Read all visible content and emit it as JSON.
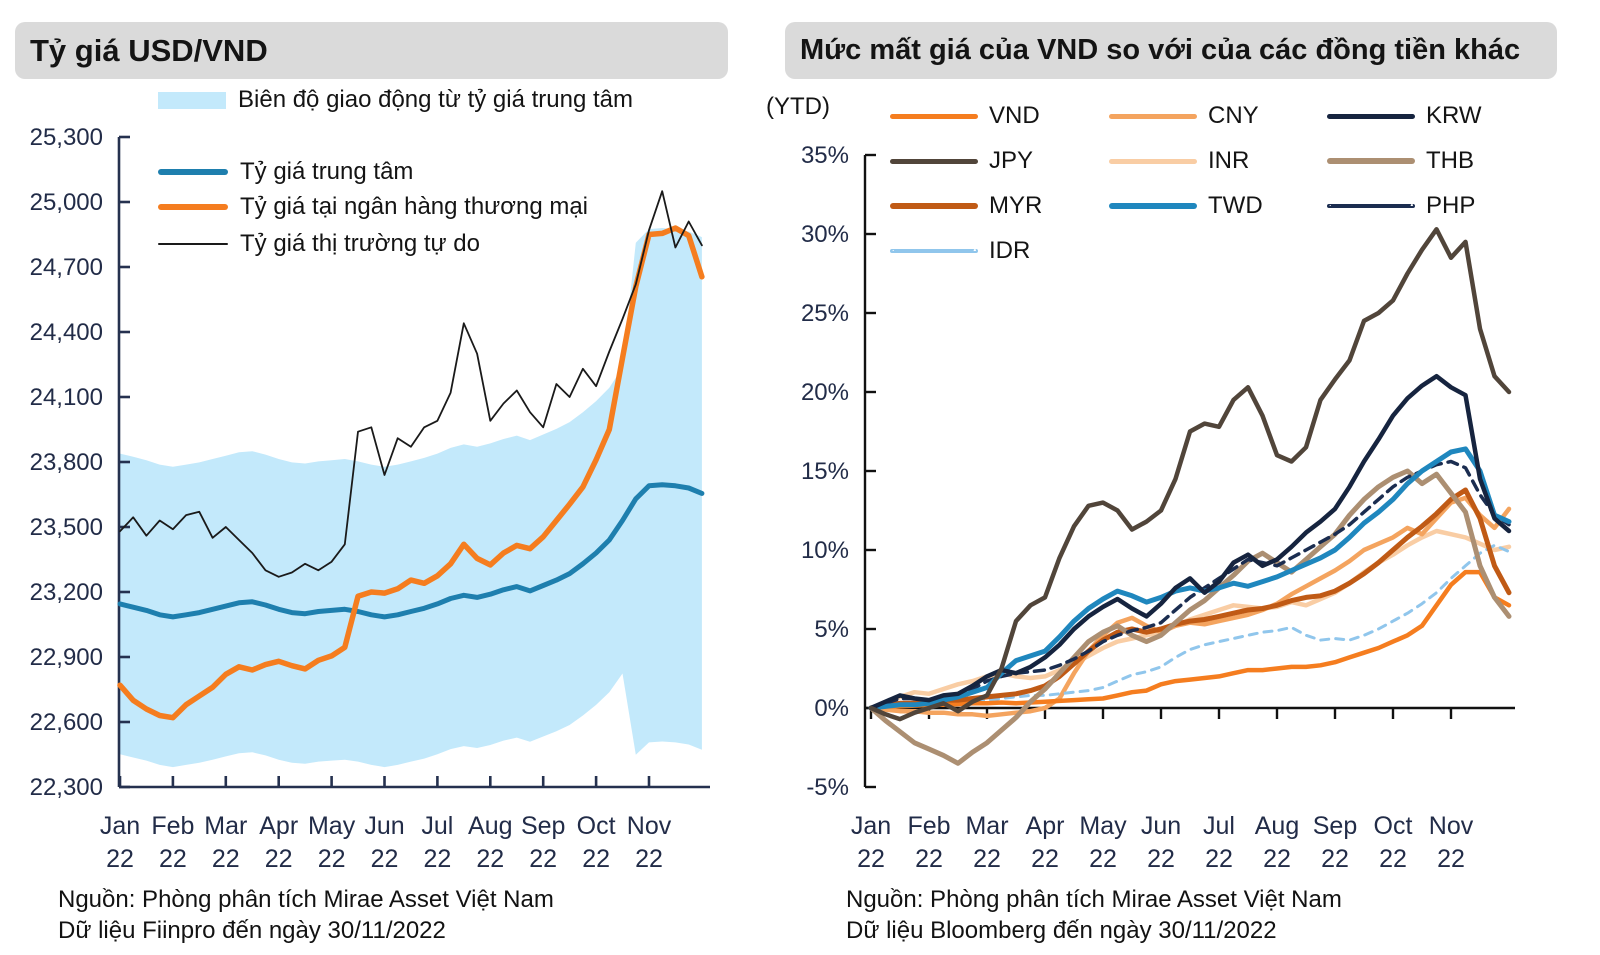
{
  "page": {
    "background": "#FFFFFF"
  },
  "left_panel": {
    "source_line1": "Nguồn: Phòng phân tích Mirae Asset Việt Nam",
    "source_line2": "Dữ liệu Fiinpro đến ngày 30/11/2022"
  },
  "right_panel": {
    "source_line1": "Nguồn: Phòng phân tích Mirae Asset Việt Nam",
    "source_line2": "Dữ liệu Bloomberg đến ngày 30/11/2022"
  },
  "chart_data": [
    {
      "id": "usdvnd",
      "type": "line",
      "title": "Tỷ giá USD/VND",
      "x_unit": "months of 2022",
      "x_start": 0,
      "x_step": 0.25,
      "x_tick_labels": [
        "Jan",
        "Feb",
        "Mar",
        "Apr",
        "May",
        "Jun",
        "Jul",
        "Aug",
        "Sep",
        "Oct",
        "Nov"
      ],
      "x_tick_year": "22",
      "ylim": [
        22300,
        25300
      ],
      "grid": false,
      "legend_position": "top-left-inside",
      "y_ticks": [
        {
          "v": 25300,
          "label": "25,300"
        },
        {
          "v": 25000,
          "label": "25,000"
        },
        {
          "v": 24700,
          "label": "24,700"
        },
        {
          "v": 24400,
          "label": "24,400"
        },
        {
          "v": 24100,
          "label": "24,100"
        },
        {
          "v": 23800,
          "label": "23,800"
        },
        {
          "v": 23500,
          "label": "23,500"
        },
        {
          "v": 23200,
          "label": "23,200"
        },
        {
          "v": 22900,
          "label": "22,900"
        },
        {
          "v": 22600,
          "label": "22,600"
        },
        {
          "v": 22300,
          "label": "22,300"
        }
      ],
      "band": {
        "name": "Biên độ giao động từ tỷ giá trung tâm",
        "color": "#C3E9FB",
        "upper": [
          23839,
          23824,
          23808,
          23788,
          23778,
          23788,
          23798,
          23814,
          23829,
          23845,
          23850,
          23834,
          23814,
          23798,
          23793,
          23803,
          23808,
          23814,
          23803,
          23788,
          23778,
          23788,
          23803,
          23819,
          23839,
          23865,
          23881,
          23870,
          23886,
          23906,
          23922,
          23901,
          23927,
          23953,
          23984,
          24030,
          24081,
          24143,
          24236,
          24812,
          24875,
          24880,
          24875,
          24864,
          24838
        ],
        "lower": [
          22451,
          22436,
          22422,
          22402,
          22392,
          22402,
          22412,
          22426,
          22441,
          22456,
          22460,
          22446,
          22426,
          22412,
          22407,
          22417,
          22422,
          22426,
          22417,
          22402,
          22392,
          22402,
          22417,
          22431,
          22451,
          22475,
          22489,
          22480,
          22494,
          22514,
          22528,
          22509,
          22533,
          22557,
          22586,
          22630,
          22679,
          22737,
          22824,
          22449,
          22506,
          22510,
          22506,
          22496,
          22472
        ]
      },
      "series": [
        {
          "key": "central",
          "name": "Tỷ giá trung tâm",
          "color": "#1E7FAE",
          "width": 5,
          "z": 1,
          "values": [
            23145,
            23130,
            23115,
            23095,
            23085,
            23095,
            23105,
            23120,
            23135,
            23150,
            23155,
            23140,
            23120,
            23105,
            23100,
            23110,
            23115,
            23120,
            23110,
            23095,
            23085,
            23095,
            23110,
            23125,
            23145,
            23170,
            23185,
            23175,
            23190,
            23210,
            23225,
            23205,
            23230,
            23255,
            23285,
            23330,
            23380,
            23440,
            23530,
            23630,
            23690,
            23695,
            23690,
            23680,
            23655
          ]
        },
        {
          "key": "bank",
          "name": "Tỷ giá tại ngân hàng thương mại",
          "color": "#F57D1F",
          "width": 5.5,
          "z": 2,
          "values": [
            22770,
            22700,
            22660,
            22630,
            22620,
            22680,
            22720,
            22760,
            22820,
            22855,
            22840,
            22865,
            22880,
            22860,
            22845,
            22885,
            22905,
            22945,
            23180,
            23200,
            23195,
            23215,
            23255,
            23240,
            23275,
            23330,
            23420,
            23355,
            23325,
            23380,
            23415,
            23400,
            23455,
            23530,
            23605,
            23685,
            23810,
            23950,
            24280,
            24610,
            24850,
            24855,
            24880,
            24845,
            24655
          ]
        },
        {
          "key": "free",
          "name": "Tỷ giá thị trường tự do",
          "color": "#1A1A1A",
          "width": 1.8,
          "z": 3,
          "values": [
            23480,
            23545,
            23460,
            23530,
            23490,
            23555,
            23570,
            23450,
            23500,
            23440,
            23380,
            23300,
            23270,
            23290,
            23330,
            23300,
            23340,
            23420,
            23940,
            23960,
            23740,
            23910,
            23870,
            23960,
            23990,
            24120,
            24440,
            24300,
            23990,
            24070,
            24130,
            24030,
            23960,
            24160,
            24100,
            24230,
            24150,
            24310,
            24460,
            24620,
            24870,
            25050,
            24790,
            24910,
            24800
          ]
        }
      ]
    },
    {
      "id": "ytd",
      "type": "line",
      "title": "Mức mất giá của VND so với của các đồng tiền khác",
      "unit_label": "(YTD)",
      "x_unit": "months of 2022",
      "x_start": 0,
      "x_step": 0.25,
      "x_tick_labels": [
        "Jan",
        "Feb",
        "Mar",
        "Apr",
        "May",
        "Jun",
        "Jul",
        "Aug",
        "Sep",
        "Oct",
        "Nov"
      ],
      "x_tick_year": "22",
      "ylim": [
        -5,
        35
      ],
      "grid": false,
      "legend_position": "top-grid-3col",
      "y_ticks": [
        {
          "v": 35,
          "label": "35%"
        },
        {
          "v": 30,
          "label": "30%"
        },
        {
          "v": 25,
          "label": "25%"
        },
        {
          "v": 20,
          "label": "20%"
        },
        {
          "v": 15,
          "label": "15%"
        },
        {
          "v": 10,
          "label": "10%"
        },
        {
          "v": 5,
          "label": "5%"
        },
        {
          "v": 0,
          "label": "0%"
        },
        {
          "v": -5,
          "label": "-5%"
        }
      ],
      "series": [
        {
          "key": "vnd",
          "name": "VND",
          "color": "#F57D1F",
          "width": 4.5,
          "z": 4,
          "values": [
            0,
            0.1,
            0.1,
            0.15,
            0.2,
            0.2,
            0.25,
            0.3,
            0.3,
            0.35,
            0.3,
            0.35,
            0.4,
            0.45,
            0.5,
            0.55,
            0.6,
            0.8,
            1.0,
            1.1,
            1.5,
            1.7,
            1.8,
            1.9,
            2.0,
            2.2,
            2.4,
            2.4,
            2.5,
            2.6,
            2.6,
            2.7,
            2.9,
            3.2,
            3.5,
            3.8,
            4.2,
            4.6,
            5.2,
            6.5,
            7.8,
            8.6,
            8.6,
            7.0,
            6.5
          ]
        },
        {
          "key": "cny",
          "name": "CNY",
          "color": "#F4A45F",
          "width": 4.5,
          "z": 2,
          "values": [
            0,
            -0.1,
            -0.2,
            -0.2,
            -0.3,
            -0.3,
            -0.4,
            -0.4,
            -0.5,
            -0.4,
            -0.3,
            -0.2,
            0,
            0.6,
            2.2,
            3.6,
            4.6,
            5.4,
            5.7,
            5.2,
            4.8,
            5.2,
            5.4,
            5.3,
            5.5,
            5.7,
            5.9,
            6.2,
            6.6,
            7.2,
            7.7,
            8.2,
            8.7,
            9.3,
            10.0,
            10.4,
            10.8,
            11.4,
            11.0,
            12.0,
            13.0,
            13.3,
            12.2,
            11.4,
            12.6
          ]
        },
        {
          "key": "krw",
          "name": "KRW",
          "color": "#16243F",
          "width": 4.5,
          "z": 9,
          "values": [
            0,
            0.4,
            0.8,
            0.6,
            0.5,
            0.8,
            0.9,
            1.4,
            2.0,
            2.4,
            2.2,
            2.6,
            3.2,
            4.0,
            5.0,
            5.8,
            6.4,
            6.9,
            6.3,
            5.8,
            6.6,
            7.6,
            8.2,
            7.3,
            8.0,
            9.2,
            9.7,
            9.0,
            9.4,
            10.2,
            11.1,
            11.8,
            12.6,
            14.0,
            15.6,
            17.0,
            18.5,
            19.6,
            20.4,
            21.0,
            20.3,
            19.8,
            14.5,
            12.0,
            11.2
          ]
        },
        {
          "key": "jpy",
          "name": "JPY",
          "color": "#51453A",
          "width": 4.5,
          "z": 10,
          "values": [
            0,
            -0.4,
            -0.7,
            -0.3,
            0,
            0.3,
            -0.2,
            0.4,
            0.8,
            2.5,
            5.5,
            6.5,
            7.0,
            9.5,
            11.5,
            12.8,
            13.0,
            12.5,
            11.3,
            11.8,
            12.5,
            14.5,
            17.5,
            18.0,
            17.8,
            19.5,
            20.3,
            18.5,
            16.0,
            15.6,
            16.5,
            19.5,
            20.8,
            22.0,
            24.5,
            25.0,
            25.8,
            27.5,
            29.0,
            30.3,
            28.5,
            29.5,
            24.0,
            21.0,
            20.0
          ]
        },
        {
          "key": "inr",
          "name": "INR",
          "color": "#F9CDA4",
          "width": 4.5,
          "z": 1,
          "values": [
            0,
            0.3,
            0.7,
            1.0,
            0.9,
            1.2,
            1.5,
            1.7,
            2.0,
            2.2,
            2.0,
            1.9,
            2.0,
            2.4,
            2.8,
            3.3,
            3.8,
            4.2,
            4.4,
            4.6,
            4.8,
            5.2,
            5.6,
            5.9,
            6.2,
            6.5,
            6.4,
            6.3,
            6.4,
            6.7,
            6.5,
            6.9,
            7.3,
            7.9,
            8.6,
            9.2,
            9.7,
            10.3,
            10.8,
            11.2,
            11.0,
            10.8,
            10.4,
            10.0,
            10.2
          ]
        },
        {
          "key": "thb",
          "name": "THB",
          "color": "#AC8F72",
          "width": 5,
          "z": 6,
          "values": [
            0,
            -0.8,
            -1.5,
            -2.2,
            -2.6,
            -3.0,
            -3.5,
            -2.8,
            -2.2,
            -1.4,
            -0.6,
            0.4,
            1.2,
            2.2,
            3.2,
            4.2,
            4.8,
            5.2,
            4.6,
            4.2,
            4.6,
            5.4,
            6.2,
            6.8,
            7.6,
            8.4,
            9.3,
            9.8,
            9.2,
            8.6,
            9.4,
            10.2,
            11.0,
            12.2,
            13.2,
            14.0,
            14.6,
            15.0,
            14.2,
            14.8,
            13.6,
            12.4,
            9.0,
            7.0,
            5.8
          ]
        },
        {
          "key": "myr",
          "name": "MYR",
          "color": "#C05A15",
          "width": 5,
          "z": 5,
          "values": [
            0,
            0.2,
            0.3,
            0.3,
            0.4,
            0.5,
            0.5,
            0.6,
            0.7,
            0.8,
            0.9,
            1.1,
            1.4,
            2.0,
            2.8,
            3.6,
            4.3,
            4.8,
            5.0,
            4.8,
            5.0,
            5.3,
            5.5,
            5.6,
            5.8,
            6.0,
            6.2,
            6.3,
            6.5,
            6.8,
            7.0,
            7.1,
            7.4,
            7.9,
            8.5,
            9.2,
            10.0,
            10.8,
            11.5,
            12.3,
            13.2,
            13.8,
            12.0,
            9.0,
            7.3
          ]
        },
        {
          "key": "twd",
          "name": "TWD",
          "color": "#1F87BE",
          "width": 5,
          "z": 8,
          "values": [
            0,
            0.1,
            0.2,
            0.2,
            0.3,
            0.5,
            0.7,
            1.0,
            1.3,
            2.2,
            3.0,
            3.3,
            3.6,
            4.5,
            5.5,
            6.3,
            6.9,
            7.4,
            7.1,
            6.7,
            7.0,
            7.4,
            7.6,
            7.4,
            7.6,
            7.9,
            7.7,
            8.0,
            8.3,
            8.7,
            9.1,
            9.5,
            10.0,
            10.8,
            11.7,
            12.4,
            13.2,
            14.2,
            15.0,
            15.6,
            16.2,
            16.4,
            15.0,
            12.2,
            11.8
          ]
        },
        {
          "key": "php",
          "name": "PHP",
          "color": "#1B2D50",
          "width": 3.5,
          "dash": "10 7",
          "z": 7,
          "values": [
            0,
            0.3,
            0.6,
            0.6,
            0.5,
            0.7,
            0.8,
            1.2,
            1.7,
            2.0,
            2.2,
            2.3,
            2.4,
            2.7,
            3.1,
            3.6,
            4.2,
            4.6,
            4.9,
            5.1,
            5.4,
            6.2,
            7.0,
            7.6,
            8.2,
            8.8,
            9.4,
            9.2,
            9.0,
            9.5,
            10.0,
            10.5,
            11.0,
            11.6,
            12.4,
            13.2,
            14.0,
            14.6,
            15.0,
            15.4,
            15.6,
            15.2,
            13.5,
            12.2,
            11.6
          ]
        },
        {
          "key": "idr",
          "name": "IDR",
          "color": "#90C6EC",
          "width": 3,
          "dash": "8 7",
          "z": 3,
          "values": [
            0,
            0.1,
            0.2,
            0.3,
            0.3,
            0.4,
            0.4,
            0.5,
            0.5,
            0.6,
            0.7,
            0.8,
            0.8,
            0.9,
            1.0,
            1.1,
            1.3,
            1.7,
            2.1,
            2.3,
            2.6,
            3.2,
            3.7,
            4.0,
            4.2,
            4.4,
            4.6,
            4.8,
            4.9,
            5.1,
            4.6,
            4.3,
            4.4,
            4.3,
            4.6,
            5.0,
            5.5,
            6.0,
            6.6,
            7.3,
            8.2,
            9.0,
            9.8,
            10.3,
            9.9
          ]
        }
      ]
    }
  ]
}
